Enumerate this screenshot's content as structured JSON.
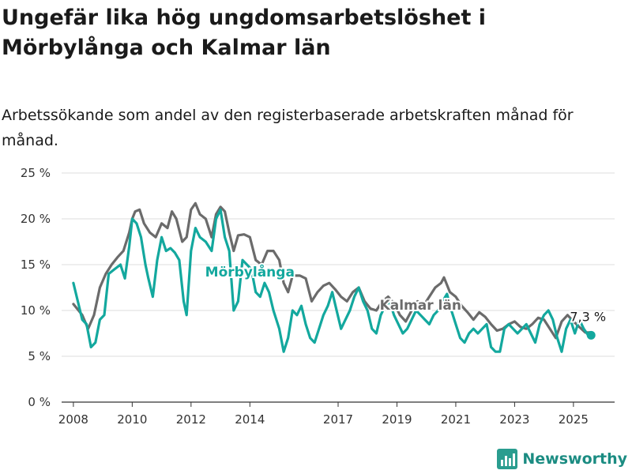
{
  "header": {
    "title": "Ungefär lika hög ungdomsarbetslöshet i Mörbylånga och Kalmar län",
    "subtitle": "Arbetssökande som andel av den registerbaserade arbetskraften månad för månad."
  },
  "brand": {
    "name": "Newsworthy",
    "icon": "bar-chart-logo-icon",
    "color": "#2a9d8f"
  },
  "chart_data": {
    "type": "line",
    "title": "",
    "xlabel": "",
    "ylabel": "",
    "ylim": [
      0,
      25
    ],
    "yticks": [
      "0 %",
      "5 %",
      "10 %",
      "15 %",
      "20 %",
      "25 %"
    ],
    "xticks": [
      "2008",
      "2010",
      "2012",
      "2014",
      "2017",
      "2019",
      "2021",
      "2023",
      "2025"
    ],
    "xlim": [
      2007.6,
      2026.4
    ],
    "grid": true,
    "series": [
      {
        "name": "Kalmar län",
        "color": "#6b6b6b",
        "label_position": "mid",
        "points": [
          [
            2008.0,
            10.7
          ],
          [
            2008.3,
            9.5
          ],
          [
            2008.5,
            8.0
          ],
          [
            2008.7,
            9.5
          ],
          [
            2008.9,
            12.5
          ],
          [
            2009.1,
            14.0
          ],
          [
            2009.3,
            15.0
          ],
          [
            2009.5,
            15.8
          ],
          [
            2009.7,
            16.5
          ],
          [
            2009.9,
            18.5
          ],
          [
            2010.0,
            20.0
          ],
          [
            2010.1,
            20.8
          ],
          [
            2010.25,
            21.0
          ],
          [
            2010.4,
            19.5
          ],
          [
            2010.6,
            18.5
          ],
          [
            2010.8,
            18.0
          ],
          [
            2011.0,
            19.5
          ],
          [
            2011.2,
            19.0
          ],
          [
            2011.35,
            20.8
          ],
          [
            2011.5,
            20.0
          ],
          [
            2011.7,
            17.5
          ],
          [
            2011.85,
            18.0
          ],
          [
            2012.0,
            21.0
          ],
          [
            2012.15,
            21.7
          ],
          [
            2012.3,
            20.5
          ],
          [
            2012.5,
            20.0
          ],
          [
            2012.7,
            18.0
          ],
          [
            2012.85,
            20.5
          ],
          [
            2013.0,
            21.3
          ],
          [
            2013.15,
            20.8
          ],
          [
            2013.3,
            18.5
          ],
          [
            2013.45,
            16.5
          ],
          [
            2013.6,
            18.2
          ],
          [
            2013.8,
            18.3
          ],
          [
            2014.0,
            18.0
          ],
          [
            2014.2,
            15.5
          ],
          [
            2014.4,
            15.0
          ],
          [
            2014.6,
            16.5
          ],
          [
            2014.8,
            16.5
          ],
          [
            2015.0,
            15.5
          ],
          [
            2015.15,
            13.0
          ],
          [
            2015.3,
            12.0
          ],
          [
            2015.45,
            13.8
          ],
          [
            2015.7,
            13.8
          ],
          [
            2015.9,
            13.5
          ],
          [
            2016.1,
            11.0
          ],
          [
            2016.3,
            12.0
          ],
          [
            2016.5,
            12.7
          ],
          [
            2016.7,
            13.0
          ],
          [
            2016.9,
            12.3
          ],
          [
            2017.1,
            11.5
          ],
          [
            2017.3,
            11.0
          ],
          [
            2017.5,
            12.0
          ],
          [
            2017.7,
            12.5
          ],
          [
            2017.9,
            11.0
          ],
          [
            2018.1,
            10.2
          ],
          [
            2018.3,
            10.0
          ],
          [
            2018.5,
            11.0
          ],
          [
            2018.7,
            11.5
          ],
          [
            2018.9,
            10.8
          ],
          [
            2019.1,
            9.5
          ],
          [
            2019.3,
            8.8
          ],
          [
            2019.5,
            10.0
          ],
          [
            2019.7,
            11.0
          ],
          [
            2019.9,
            10.5
          ],
          [
            2020.1,
            11.5
          ],
          [
            2020.3,
            12.5
          ],
          [
            2020.5,
            13.0
          ],
          [
            2020.6,
            13.6
          ],
          [
            2020.8,
            12.0
          ],
          [
            2021.0,
            11.5
          ],
          [
            2021.2,
            10.5
          ],
          [
            2021.4,
            9.8
          ],
          [
            2021.6,
            9.0
          ],
          [
            2021.8,
            9.8
          ],
          [
            2022.0,
            9.3
          ],
          [
            2022.2,
            8.5
          ],
          [
            2022.4,
            7.8
          ],
          [
            2022.6,
            8.0
          ],
          [
            2022.8,
            8.5
          ],
          [
            2023.0,
            8.8
          ],
          [
            2023.2,
            8.2
          ],
          [
            2023.4,
            8.0
          ],
          [
            2023.6,
            8.5
          ],
          [
            2023.8,
            9.2
          ],
          [
            2024.0,
            9.0
          ],
          [
            2024.2,
            8.0
          ],
          [
            2024.4,
            7.0
          ],
          [
            2024.6,
            8.8
          ],
          [
            2024.8,
            9.5
          ],
          [
            2025.0,
            8.8
          ],
          [
            2025.2,
            8.2
          ],
          [
            2025.4,
            7.6
          ],
          [
            2025.6,
            7.6
          ]
        ]
      },
      {
        "name": "Mörbylånga",
        "color": "#13a89e",
        "label_position": "mid",
        "points": [
          [
            2008.0,
            13.0
          ],
          [
            2008.15,
            11.0
          ],
          [
            2008.3,
            9.0
          ],
          [
            2008.45,
            8.5
          ],
          [
            2008.6,
            6.0
          ],
          [
            2008.75,
            6.5
          ],
          [
            2008.9,
            9.0
          ],
          [
            2009.05,
            9.5
          ],
          [
            2009.2,
            14.0
          ],
          [
            2009.4,
            14.5
          ],
          [
            2009.6,
            15.0
          ],
          [
            2009.75,
            13.5
          ],
          [
            2009.9,
            17.0
          ],
          [
            2010.0,
            20.0
          ],
          [
            2010.15,
            19.5
          ],
          [
            2010.3,
            18.0
          ],
          [
            2010.45,
            15.0
          ],
          [
            2010.55,
            13.5
          ],
          [
            2010.7,
            11.5
          ],
          [
            2010.85,
            15.5
          ],
          [
            2011.0,
            18.0
          ],
          [
            2011.15,
            16.5
          ],
          [
            2011.3,
            16.8
          ],
          [
            2011.45,
            16.3
          ],
          [
            2011.6,
            15.5
          ],
          [
            2011.75,
            11.0
          ],
          [
            2011.85,
            9.5
          ],
          [
            2012.0,
            16.5
          ],
          [
            2012.15,
            19.0
          ],
          [
            2012.3,
            18.0
          ],
          [
            2012.5,
            17.5
          ],
          [
            2012.7,
            16.5
          ],
          [
            2012.85,
            20.0
          ],
          [
            2013.0,
            21.0
          ],
          [
            2013.15,
            18.0
          ],
          [
            2013.3,
            16.5
          ],
          [
            2013.45,
            10.0
          ],
          [
            2013.6,
            11.0
          ],
          [
            2013.75,
            15.5
          ],
          [
            2013.9,
            15.0
          ],
          [
            2014.05,
            14.5
          ],
          [
            2014.2,
            12.0
          ],
          [
            2014.35,
            11.5
          ],
          [
            2014.5,
            13.0
          ],
          [
            2014.65,
            12.0
          ],
          [
            2014.8,
            10.0
          ],
          [
            2015.0,
            8.0
          ],
          [
            2015.15,
            5.5
          ],
          [
            2015.3,
            7.0
          ],
          [
            2015.45,
            10.0
          ],
          [
            2015.6,
            9.5
          ],
          [
            2015.75,
            10.5
          ],
          [
            2015.9,
            8.5
          ],
          [
            2016.05,
            7.0
          ],
          [
            2016.2,
            6.5
          ],
          [
            2016.35,
            8.0
          ],
          [
            2016.5,
            9.5
          ],
          [
            2016.65,
            10.5
          ],
          [
            2016.8,
            12.0
          ],
          [
            2016.95,
            10.0
          ],
          [
            2017.1,
            8.0
          ],
          [
            2017.25,
            9.0
          ],
          [
            2017.4,
            10.0
          ],
          [
            2017.55,
            11.5
          ],
          [
            2017.7,
            12.5
          ],
          [
            2017.85,
            11.0
          ],
          [
            2018.0,
            10.0
          ],
          [
            2018.15,
            8.0
          ],
          [
            2018.3,
            7.5
          ],
          [
            2018.45,
            9.5
          ],
          [
            2018.6,
            10.5
          ],
          [
            2018.75,
            11.0
          ],
          [
            2018.9,
            9.5
          ],
          [
            2019.05,
            8.5
          ],
          [
            2019.2,
            7.5
          ],
          [
            2019.35,
            8.0
          ],
          [
            2019.5,
            9.0
          ],
          [
            2019.65,
            10.0
          ],
          [
            2019.8,
            9.5
          ],
          [
            2019.95,
            9.0
          ],
          [
            2020.1,
            8.5
          ],
          [
            2020.25,
            9.5
          ],
          [
            2020.4,
            10.0
          ],
          [
            2020.55,
            11.0
          ],
          [
            2020.7,
            11.8
          ],
          [
            2020.85,
            10.0
          ],
          [
            2021.0,
            8.5
          ],
          [
            2021.15,
            7.0
          ],
          [
            2021.3,
            6.5
          ],
          [
            2021.45,
            7.5
          ],
          [
            2021.6,
            8.0
          ],
          [
            2021.75,
            7.5
          ],
          [
            2021.9,
            8.0
          ],
          [
            2022.05,
            8.5
          ],
          [
            2022.2,
            6.0
          ],
          [
            2022.35,
            5.5
          ],
          [
            2022.5,
            5.5
          ],
          [
            2022.65,
            8.0
          ],
          [
            2022.8,
            8.5
          ],
          [
            2022.95,
            8.0
          ],
          [
            2023.1,
            7.5
          ],
          [
            2023.25,
            8.0
          ],
          [
            2023.4,
            8.5
          ],
          [
            2023.55,
            7.5
          ],
          [
            2023.7,
            6.5
          ],
          [
            2023.85,
            8.5
          ],
          [
            2024.0,
            9.5
          ],
          [
            2024.15,
            10.0
          ],
          [
            2024.3,
            9.0
          ],
          [
            2024.45,
            7.0
          ],
          [
            2024.6,
            5.5
          ],
          [
            2024.75,
            8.0
          ],
          [
            2024.9,
            9.0
          ],
          [
            2025.05,
            7.5
          ],
          [
            2025.2,
            9.0
          ],
          [
            2025.35,
            8.0
          ],
          [
            2025.5,
            7.3
          ],
          [
            2025.6,
            7.3
          ]
        ]
      }
    ],
    "end_label": {
      "series": "Mörbylånga",
      "x": 2025.6,
      "y": 7.3,
      "text": "7,3 %"
    }
  }
}
